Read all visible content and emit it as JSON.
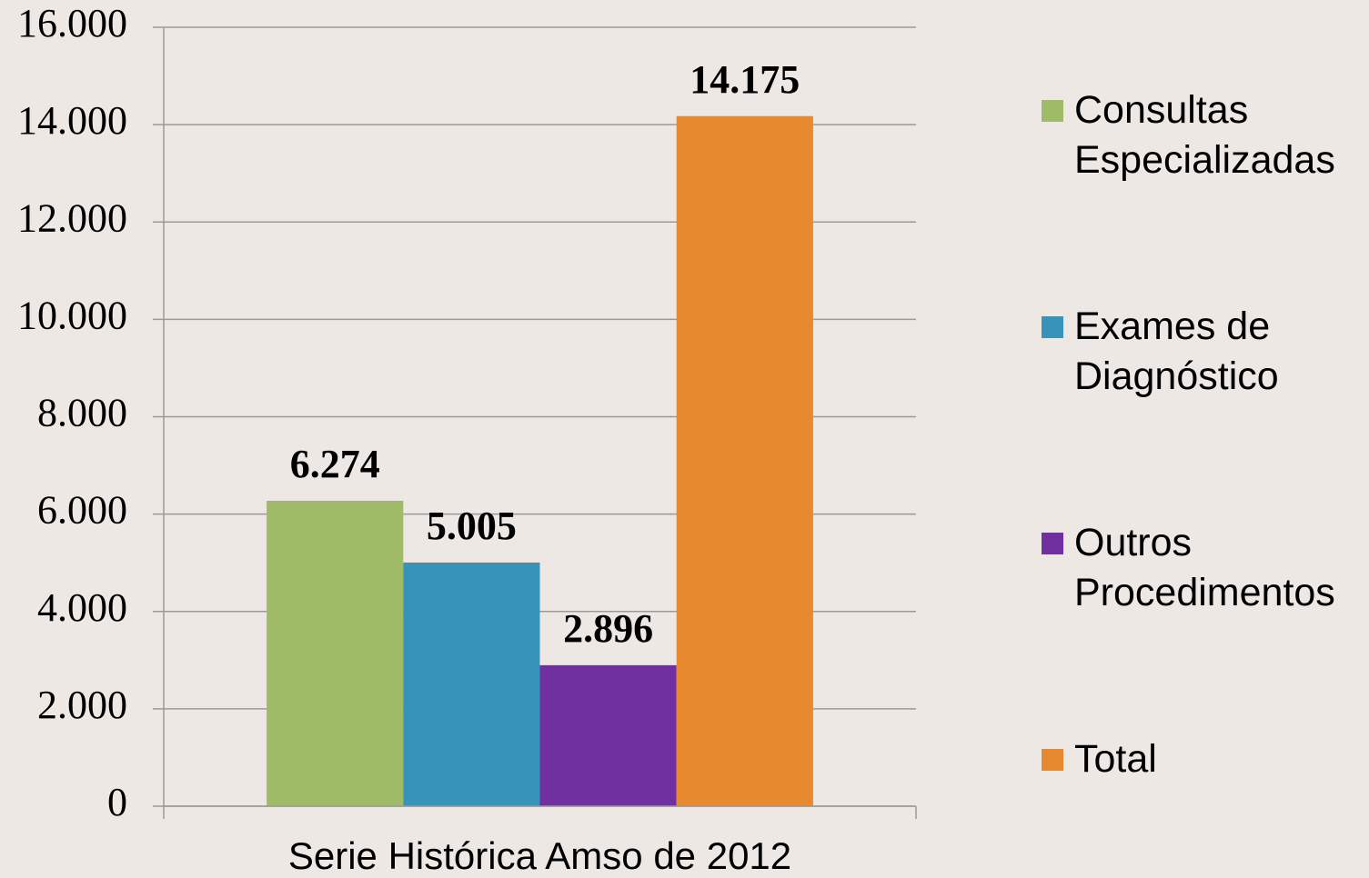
{
  "chart_data": {
    "type": "bar",
    "categories": [
      "Serie Histórica Amso de 2012"
    ],
    "series": [
      {
        "name": "Consultas Especializadas",
        "color": "#9fbb68",
        "values": [
          6274
        ],
        "value_labels": [
          "6.274"
        ]
      },
      {
        "name": "Exames de Diagnóstico",
        "color": "#3794b8",
        "values": [
          5005
        ],
        "value_labels": [
          "5.005"
        ]
      },
      {
        "name": "Outros Procedimentos",
        "color": "#7030a0",
        "values": [
          2896
        ],
        "value_labels": [
          "2.896"
        ]
      },
      {
        "name": "Total",
        "color": "#e6892f",
        "values": [
          14175
        ],
        "value_labels": [
          "14.175"
        ]
      }
    ],
    "ylim": [
      0,
      16000
    ],
    "yticks": [
      0,
      {
        "value": 2000,
        "label": "2.000"
      },
      {
        "value": 4000,
        "label": "4.000"
      },
      {
        "value": 6000,
        "label": "6.000"
      },
      {
        "value": 8000,
        "label": "8.000"
      },
      {
        "value": 10000,
        "label": "10.000"
      },
      {
        "value": 12000,
        "label": "12.000"
      },
      {
        "value": 14000,
        "label": "14.000"
      },
      {
        "value": 16000,
        "label": "16.000"
      }
    ],
    "grid": true,
    "legend": "right"
  }
}
